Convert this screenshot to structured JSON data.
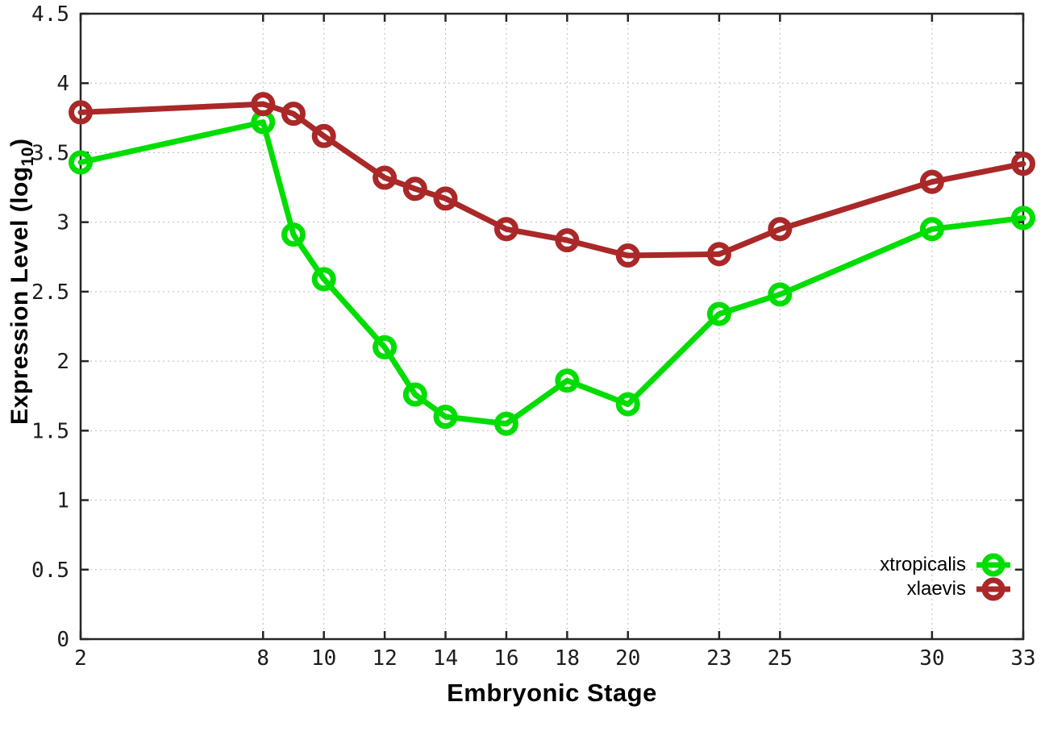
{
  "figure": {
    "xlabel": "Embryonic Stage",
    "ylabel_main": "Expression Level (log",
    "ylabel_sub": "10",
    "ylabel_close": ")"
  },
  "chart_data": {
    "type": "line",
    "title": "",
    "xlabel": "Embryonic Stage",
    "ylabel": "Expression Level (log10)",
    "x": [
      2,
      8,
      9,
      10,
      12,
      13,
      14,
      16,
      18,
      20,
      23,
      25,
      30,
      33
    ],
    "series": [
      {
        "name": "xtropicalis",
        "color": "#00dd00",
        "values": [
          3.43,
          3.72,
          2.91,
          2.59,
          2.1,
          1.76,
          1.6,
          1.55,
          1.86,
          1.69,
          2.34,
          2.48,
          2.95,
          3.03
        ]
      },
      {
        "name": "xlaevis",
        "color": "#aa2828",
        "values": [
          3.79,
          3.85,
          3.78,
          3.62,
          3.32,
          3.24,
          3.17,
          2.95,
          2.87,
          2.76,
          2.77,
          2.95,
          3.29,
          3.42
        ]
      }
    ],
    "xlim": [
      2,
      33
    ],
    "ylim": [
      0,
      4.5
    ],
    "xticks": [
      2,
      8,
      10,
      12,
      14,
      16,
      18,
      20,
      23,
      25,
      30,
      33
    ],
    "yticks": [
      0,
      0.5,
      1,
      1.5,
      2,
      2.5,
      3,
      3.5,
      4,
      4.5
    ],
    "grid": true,
    "legend_position": "bottom-right",
    "axis_color": "#262626",
    "grid_color": "#bcbcbc",
    "marker": "open-circle"
  }
}
